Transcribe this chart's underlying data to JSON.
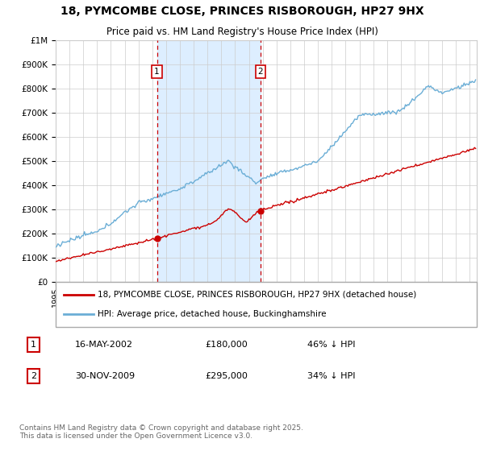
{
  "title": "18, PYMCOMBE CLOSE, PRINCES RISBOROUGH, HP27 9HX",
  "subtitle": "Price paid vs. HM Land Registry's House Price Index (HPI)",
  "property_label": "18, PYMCOMBE CLOSE, PRINCES RISBOROUGH, HP27 9HX (detached house)",
  "hpi_label": "HPI: Average price, detached house, Buckinghamshire",
  "purchase1_date": "16-MAY-2002",
  "purchase1_price": 180000,
  "purchase1_pct": "46% ↓ HPI",
  "purchase2_date": "30-NOV-2009",
  "purchase2_price": 295000,
  "purchase2_pct": "34% ↓ HPI",
  "footer": "Contains HM Land Registry data © Crown copyright and database right 2025.\nThis data is licensed under the Open Government Licence v3.0.",
  "hpi_color": "#6baed6",
  "property_color": "#cc0000",
  "vline_color": "#cc0000",
  "shade_color": "#ddeeff",
  "plot_bg": "#ffffff",
  "fig_bg": "#ffffff",
  "grid_color": "#cccccc",
  "legend_border": "#aaaaaa",
  "ylim": [
    0,
    1000000
  ],
  "xlim_start": 1995,
  "xlim_end": 2025.5
}
